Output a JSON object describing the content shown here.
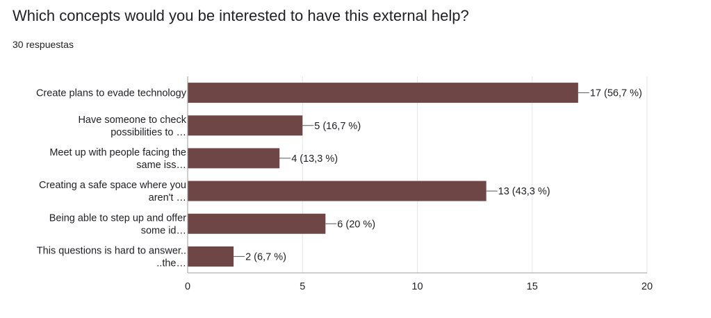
{
  "header": {
    "title": "Which concepts would you be interested to have this external help?",
    "response_count": "30 respuestas"
  },
  "colors": {
    "bar": "#6d4645",
    "grid": "#e6e6e6",
    "axis": "#9e9e9e",
    "text": "#202124"
  },
  "chart_data": {
    "type": "bar",
    "orientation": "horizontal",
    "title": "",
    "xlabel": "",
    "ylabel": "",
    "xlim": [
      0,
      20
    ],
    "ticks": [
      0,
      5,
      10,
      15,
      20
    ],
    "grid": true,
    "legend": "none",
    "categories": [
      [
        "Create plans to evade technology"
      ],
      [
        "Have someone to check",
        "possibilities to …"
      ],
      [
        "Meet up with people facing the",
        "same iss…"
      ],
      [
        "Creating a safe space where you",
        "aren't …"
      ],
      [
        "Being able to step up and offer",
        "some id…"
      ],
      [
        "This questions is hard to answer..",
        "..the…"
      ]
    ],
    "values": [
      17,
      5,
      4,
      13,
      6,
      2
    ],
    "data_labels": [
      "17 (56,7 %)",
      "5 (16,7 %)",
      "4 (13,3 %)",
      "13 (43,3 %)",
      "6 (20 %)",
      "2 (6,7 %)"
    ]
  }
}
